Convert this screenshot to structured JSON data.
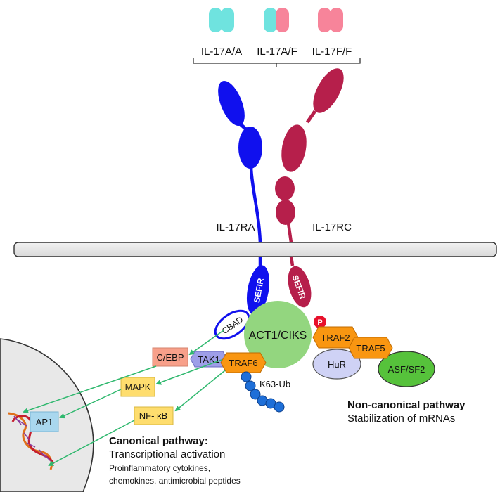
{
  "ligands": [
    {
      "label": "IL-17A/A",
      "left_color": "#6fe3df",
      "right_color": "#6fe3df"
    },
    {
      "label": "IL-17A/F",
      "left_color": "#6fe3df",
      "right_color": "#f7849a"
    },
    {
      "label": "IL-17F/F",
      "left_color": "#f7849a",
      "right_color": "#f7849a"
    }
  ],
  "receptors": {
    "ra": {
      "label": "IL-17RA",
      "color": "#1010ee"
    },
    "rc": {
      "label": "IL-17RC",
      "color": "#b61f4b"
    }
  },
  "domains": {
    "sefir": "SEFIR",
    "cbad": "CBAD",
    "act1": "ACT1/CIKS",
    "phospho": "P"
  },
  "proteins": {
    "traf2": "TRAF2",
    "traf5": "TRAF5",
    "traf6": "TRAF6",
    "tak1": "TAK1",
    "hur": "HuR",
    "asf": "ASF/SF2",
    "k63": "K63-Ub",
    "cebp": "C/EBP",
    "mapk": "MAPK",
    "nfkb": "NF- κB",
    "ap1": "AP1"
  },
  "pathways": {
    "noncanonical_title": "Non-canonical pathway",
    "noncanonical_sub": "Stabilization of mRNAs",
    "canonical_title": "Canonical pathway:",
    "canonical_sub": "Transcriptional activation",
    "canonical_detail1": "Proinflammatory cytokines,",
    "canonical_detail2": "chemokines, antimicrobial peptides"
  },
  "colors": {
    "act1": "#93d67f",
    "traf": "#f99611",
    "tak1": "#9e9ee8",
    "hur": "#cfd2f5",
    "asf": "#56c23b",
    "cebp": "#f8a08a",
    "mapk": "#fedd6e",
    "ap1": "#a9d7ee",
    "arrow": "#2fb86e",
    "membrane": "#e6e6e6",
    "nucleus": "#e8e8e8",
    "ubiquitin": "#1e6fd8",
    "phospho": "#e8102b"
  }
}
